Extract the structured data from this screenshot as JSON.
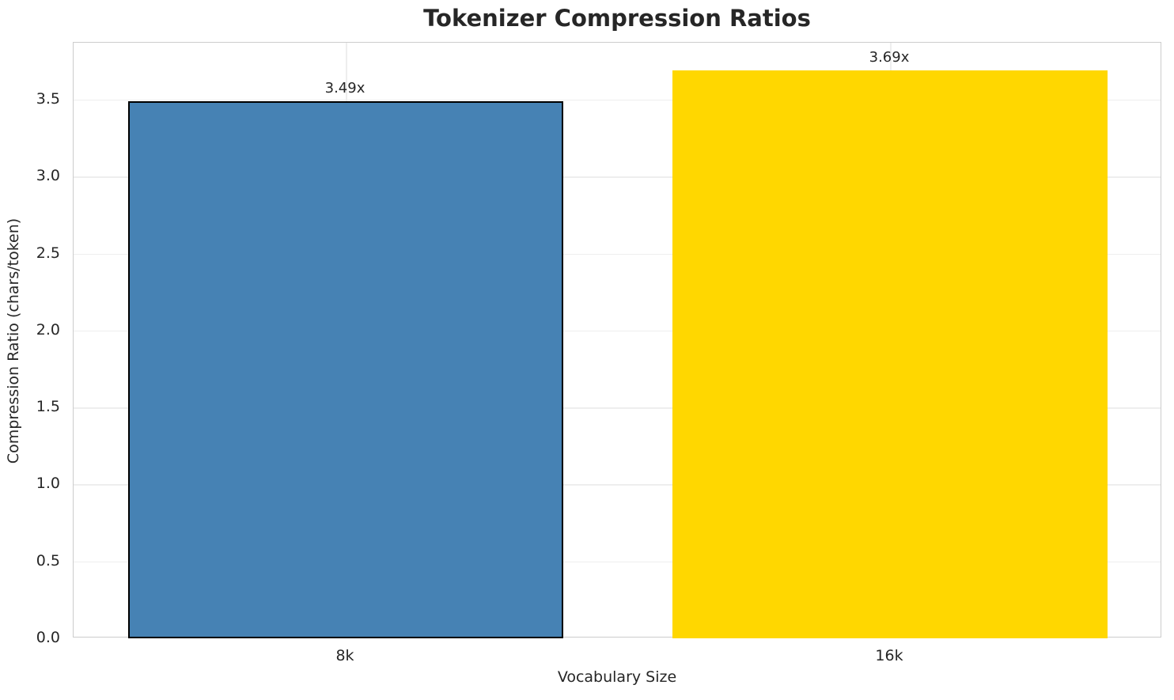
{
  "chart_data": {
    "type": "bar",
    "title": "Tokenizer Compression Ratios",
    "xlabel": "Vocabulary Size",
    "ylabel": "Compression Ratio (chars/token)",
    "categories": [
      "8k",
      "16k"
    ],
    "values": [
      3.49,
      3.69
    ],
    "value_labels": [
      "3.49x",
      "3.69x"
    ],
    "bar_colors": [
      "#4682B4",
      "#FFD700"
    ],
    "bar_edge_colors": [
      "#000000",
      "none"
    ],
    "ylim": [
      0,
      3.87
    ],
    "yticks": [
      0.0,
      0.5,
      1.0,
      1.5,
      2.0,
      2.5,
      3.0,
      3.5
    ],
    "ytick_labels": [
      "0.0",
      "0.5",
      "1.0",
      "1.5",
      "2.0",
      "2.5",
      "3.0",
      "3.5"
    ],
    "grid": true,
    "legend_position": "none",
    "colors": {
      "grid": "#eeeeee",
      "spine": "#cccccc",
      "text": "#262626",
      "background": "#ffffff"
    }
  }
}
